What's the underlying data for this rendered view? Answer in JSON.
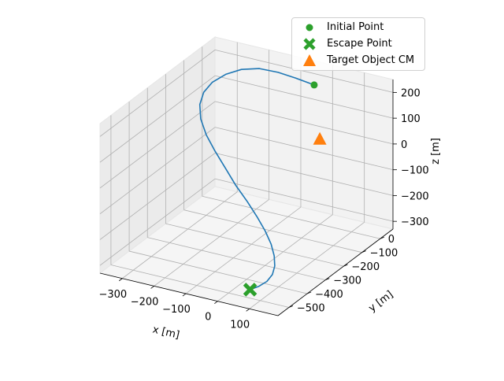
{
  "chart_data": {
    "type": "line3d",
    "title": "",
    "xlabel": "x [m]",
    "ylabel": "y [m]",
    "zlabel": "z [m]",
    "xlim": [
      -370,
      190
    ],
    "ylim": [
      -560,
      70
    ],
    "zlim": [
      -330,
      250
    ],
    "x_ticks": [
      -300,
      -200,
      -100,
      0,
      100
    ],
    "x_tick_labels": [
      "−300",
      "−200",
      "−100",
      "0",
      "100"
    ],
    "y_ticks": [
      -500,
      -400,
      -300,
      -200,
      -100,
      0
    ],
    "y_tick_labels": [
      "−500",
      "−400",
      "−300",
      "−200",
      "−100",
      "0"
    ],
    "z_ticks": [
      -300,
      -200,
      -100,
      0,
      100,
      200
    ],
    "z_tick_labels": [
      "−300",
      "−200",
      "−100",
      "0",
      "100",
      "200"
    ],
    "grid": true,
    "legend_position": "top-right",
    "series": [
      {
        "kind": "line",
        "color": "#1f77b4",
        "points": [
          [
            -35,
            30,
            184
          ],
          [
            -90,
            25,
            197
          ],
          [
            -140,
            15,
            210
          ],
          [
            -190,
            0,
            218
          ],
          [
            -235,
            -20,
            212
          ],
          [
            -270,
            -45,
            196
          ],
          [
            -295,
            -75,
            174
          ],
          [
            -305,
            -105,
            148
          ],
          [
            -300,
            -135,
            118
          ],
          [
            -280,
            -165,
            84
          ],
          [
            -245,
            -195,
            48
          ],
          [
            -200,
            -225,
            14
          ],
          [
            -150,
            -255,
            -22
          ],
          [
            -100,
            -285,
            -58
          ],
          [
            -50,
            -310,
            -92
          ],
          [
            -5,
            -335,
            -124
          ],
          [
            35,
            -360,
            -154
          ],
          [
            68,
            -385,
            -182
          ],
          [
            92,
            -410,
            -207
          ],
          [
            108,
            -435,
            -228
          ],
          [
            115,
            -460,
            -246
          ],
          [
            112,
            -485,
            -260
          ],
          [
            100,
            -510,
            -270
          ],
          [
            85,
            -530,
            -276
          ]
        ]
      },
      {
        "kind": "point",
        "name": "Initial Point",
        "color": "#2ca02c",
        "marker": "circle",
        "points": [
          [
            -35,
            30,
            184
          ]
        ]
      },
      {
        "kind": "point",
        "name": "Escape Point",
        "color": "#2ca02c",
        "marker": "x",
        "points": [
          [
            85,
            -530,
            -276
          ]
        ]
      },
      {
        "kind": "point",
        "name": "Target Object CM",
        "color": "#ff7f0e",
        "marker": "triangle",
        "points": [
          [
            0,
            0,
            0
          ]
        ]
      }
    ]
  }
}
